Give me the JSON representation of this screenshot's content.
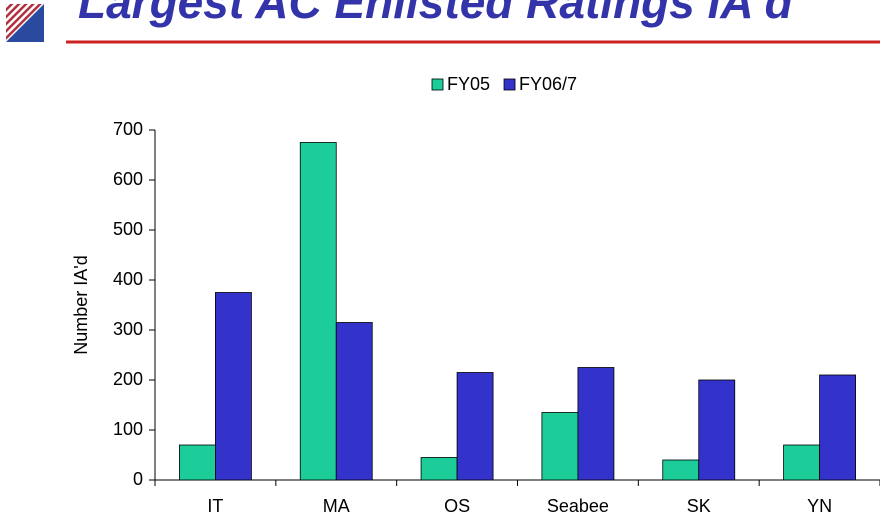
{
  "chart_data": {
    "type": "bar",
    "title": "Largest AC Enlisted Ratings IA'd",
    "y_label": "Number IA'd",
    "categories": [
      "IT",
      "MA",
      "OS",
      "Seabee",
      "SK",
      "YN"
    ],
    "series": [
      {
        "name": "FY05",
        "color": "#1ccc99",
        "values": [
          70,
          675,
          45,
          135,
          40,
          70
        ]
      },
      {
        "name": "FY06/7",
        "color": "#3333cc",
        "values": [
          375,
          315,
          215,
          225,
          200,
          210
        ]
      }
    ],
    "ylim": [
      0,
      700
    ],
    "yticks": [
      0,
      100,
      200,
      300,
      400,
      500,
      600,
      700
    ],
    "legend": "top"
  }
}
